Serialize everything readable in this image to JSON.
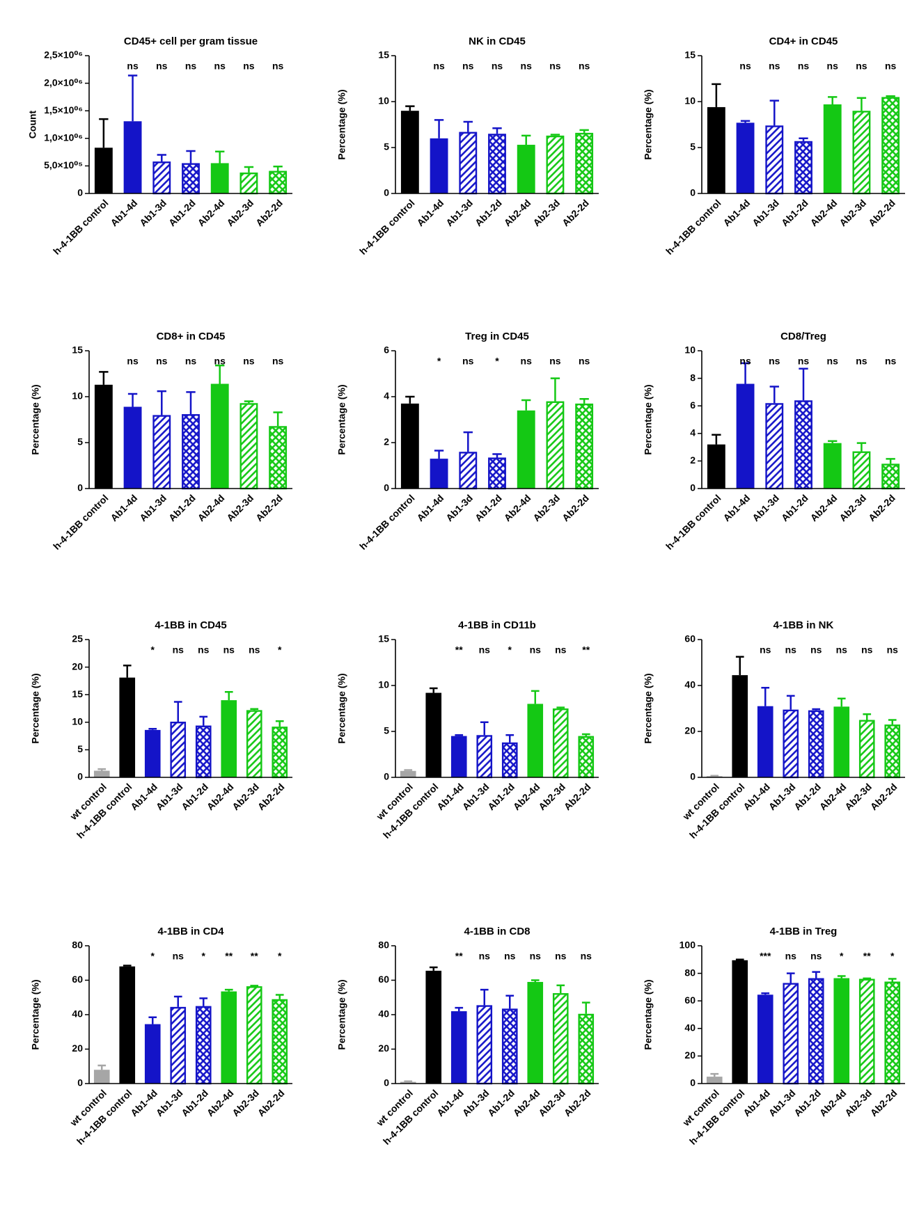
{
  "chart_data": [
    {
      "type": "bar",
      "title": "CD45+ cell per gram tissue",
      "ylabel": "Count",
      "categories": [
        "h-4-1BB control",
        "Ab1-4d",
        "Ab1-3d",
        "Ab1-2d",
        "Ab2-4d",
        "Ab2-3d",
        "Ab2-2d"
      ],
      "values": [
        830000,
        1310000,
        580000,
        550000,
        550000,
        380000,
        410000
      ],
      "errors": [
        520000,
        830000,
        120000,
        220000,
        210000,
        100000,
        80000
      ],
      "annotations": [
        null,
        "ns",
        "ns",
        "ns",
        "ns",
        "ns",
        "ns"
      ],
      "colors": [
        "#000000",
        "#1414c8",
        "#1414c8",
        "#1414c8",
        "#14c814",
        "#14c814",
        "#14c814"
      ],
      "patterns": [
        "solid",
        "solid",
        "diagonal",
        "crosshatch",
        "solid",
        "diagonal",
        "crosshatch"
      ],
      "ylim": [
        0,
        2500000
      ],
      "yticks": [
        0,
        {
          "value": 500000,
          "label": "5,0×10⁰⁵"
        },
        {
          "value": 1000000,
          "label": "1,0×10⁰⁶"
        },
        {
          "value": 1500000,
          "label": "1,5×10⁰⁶"
        },
        {
          "value": 2000000,
          "label": "2,0×10⁰⁶"
        },
        {
          "value": 2500000,
          "label": "2,5×10⁰⁶"
        }
      ]
    },
    {
      "type": "bar",
      "title": "NK in CD45",
      "ylabel": "Percentage (%)",
      "categories": [
        "h-4-1BB control",
        "Ab1-4d",
        "Ab1-3d",
        "Ab1-2d",
        "Ab2-4d",
        "Ab2-3d",
        "Ab2-2d"
      ],
      "values": [
        9.0,
        6.0,
        6.7,
        6.5,
        5.3,
        6.3,
        6.6
      ],
      "errors": [
        0.5,
        2.0,
        1.1,
        0.6,
        1.0,
        0.1,
        0.3
      ],
      "annotations": [
        null,
        "ns",
        "ns",
        "ns",
        "ns",
        "ns",
        "ns"
      ],
      "colors": [
        "#000000",
        "#1414c8",
        "#1414c8",
        "#1414c8",
        "#14c814",
        "#14c814",
        "#14c814"
      ],
      "patterns": [
        "solid",
        "solid",
        "diagonal",
        "crosshatch",
        "solid",
        "diagonal",
        "crosshatch"
      ],
      "ylim": [
        0,
        15
      ],
      "yticks": [
        0,
        5,
        10,
        15
      ]
    },
    {
      "type": "bar",
      "title": "CD4+ in CD45",
      "ylabel": "Percentage (%)",
      "categories": [
        "h-4-1BB control",
        "Ab1-4d",
        "Ab1-3d",
        "Ab1-2d",
        "Ab2-4d",
        "Ab2-3d",
        "Ab2-2d"
      ],
      "values": [
        9.4,
        7.7,
        7.4,
        5.7,
        9.7,
        9.0,
        10.5
      ],
      "errors": [
        2.5,
        0.2,
        2.7,
        0.3,
        0.8,
        1.4,
        0.1
      ],
      "annotations": [
        null,
        "ns",
        "ns",
        "ns",
        "ns",
        "ns",
        "ns"
      ],
      "colors": [
        "#000000",
        "#1414c8",
        "#1414c8",
        "#1414c8",
        "#14c814",
        "#14c814",
        "#14c814"
      ],
      "patterns": [
        "solid",
        "solid",
        "diagonal",
        "crosshatch",
        "solid",
        "diagonal",
        "crosshatch"
      ],
      "ylim": [
        0,
        15
      ],
      "yticks": [
        0,
        5,
        10,
        15
      ]
    },
    {
      "type": "bar",
      "title": "CD8+ in CD45",
      "ylabel": "Percentage (%)",
      "categories": [
        "h-4-1BB control",
        "Ab1-4d",
        "Ab1-3d",
        "Ab1-2d",
        "Ab2-4d",
        "Ab2-3d",
        "Ab2-2d"
      ],
      "values": [
        11.3,
        8.9,
        8.0,
        8.1,
        11.4,
        9.3,
        6.8
      ],
      "errors": [
        1.4,
        1.4,
        2.6,
        2.4,
        2.0,
        0.2,
        1.5
      ],
      "annotations": [
        null,
        "ns",
        "ns",
        "ns",
        "ns",
        "ns",
        "ns"
      ],
      "colors": [
        "#000000",
        "#1414c8",
        "#1414c8",
        "#1414c8",
        "#14c814",
        "#14c814",
        "#14c814"
      ],
      "patterns": [
        "solid",
        "solid",
        "diagonal",
        "crosshatch",
        "solid",
        "diagonal",
        "crosshatch"
      ],
      "ylim": [
        0,
        15
      ],
      "yticks": [
        0,
        5,
        10,
        15
      ]
    },
    {
      "type": "bar",
      "title": "Treg in CD45",
      "ylabel": "Percentage (%)",
      "categories": [
        "h-4-1BB control",
        "Ab1-4d",
        "Ab1-3d",
        "Ab1-2d",
        "Ab2-4d",
        "Ab2-3d",
        "Ab2-2d"
      ],
      "values": [
        3.7,
        1.3,
        1.6,
        1.35,
        3.4,
        3.8,
        3.7
      ],
      "errors": [
        0.3,
        0.35,
        0.85,
        0.15,
        0.45,
        1.0,
        0.2
      ],
      "annotations": [
        null,
        "*",
        "ns",
        "*",
        "ns",
        "ns",
        "ns"
      ],
      "colors": [
        "#000000",
        "#1414c8",
        "#1414c8",
        "#1414c8",
        "#14c814",
        "#14c814",
        "#14c814"
      ],
      "patterns": [
        "solid",
        "solid",
        "diagonal",
        "crosshatch",
        "solid",
        "diagonal",
        "crosshatch"
      ],
      "ylim": [
        0,
        6
      ],
      "yticks": [
        0,
        2,
        4,
        6
      ]
    },
    {
      "type": "bar",
      "title": "CD8/Treg",
      "ylabel": "Percentage (%)",
      "categories": [
        "h-4-1BB control",
        "Ab1-4d",
        "Ab1-3d",
        "Ab1-2d",
        "Ab2-4d",
        "Ab2-3d",
        "Ab2-2d"
      ],
      "values": [
        3.2,
        7.6,
        6.2,
        6.4,
        3.3,
        2.7,
        1.8
      ],
      "errors": [
        0.7,
        1.5,
        1.2,
        2.3,
        0.15,
        0.6,
        0.35
      ],
      "annotations": [
        null,
        "ns",
        "ns",
        "ns",
        "ns",
        "ns",
        "ns"
      ],
      "colors": [
        "#000000",
        "#1414c8",
        "#1414c8",
        "#1414c8",
        "#14c814",
        "#14c814",
        "#14c814"
      ],
      "patterns": [
        "solid",
        "solid",
        "diagonal",
        "crosshatch",
        "solid",
        "diagonal",
        "crosshatch"
      ],
      "ylim": [
        0,
        10
      ],
      "yticks": [
        0,
        2,
        4,
        6,
        8,
        10
      ]
    },
    {
      "type": "bar",
      "title": "4-1BB in CD45",
      "ylabel": "Percentage (%)",
      "categories": [
        "wt control",
        "h-4-1BB control",
        "Ab1-4d",
        "Ab1-3d",
        "Ab1-2d",
        "Ab2-4d",
        "Ab2-3d",
        "Ab2-2d"
      ],
      "values": [
        1.2,
        18.1,
        8.6,
        10.1,
        9.4,
        14.0,
        12.2,
        9.2
      ],
      "errors": [
        0.3,
        2.2,
        0.2,
        3.6,
        1.6,
        1.5,
        0.2,
        1.0
      ],
      "annotations": [
        null,
        null,
        "*",
        "ns",
        "ns",
        "ns",
        "ns",
        "*"
      ],
      "colors": [
        "#a6a6a6",
        "#000000",
        "#1414c8",
        "#1414c8",
        "#1414c8",
        "#14c814",
        "#14c814",
        "#14c814"
      ],
      "patterns": [
        "solid",
        "solid",
        "solid",
        "diagonal",
        "crosshatch",
        "solid",
        "diagonal",
        "crosshatch"
      ],
      "ylim": [
        0,
        25
      ],
      "yticks": [
        0,
        5,
        10,
        15,
        20,
        25
      ]
    },
    {
      "type": "bar",
      "title": "4-1BB in CD11b",
      "ylabel": "Percentage (%)",
      "categories": [
        "wt control",
        "h-4-1BB control",
        "Ab1-4d",
        "Ab1-3d",
        "Ab1-2d",
        "Ab2-4d",
        "Ab2-3d",
        "Ab2-2d"
      ],
      "values": [
        0.7,
        9.2,
        4.5,
        4.6,
        3.8,
        8.0,
        7.5,
        4.5
      ],
      "errors": [
        0.1,
        0.5,
        0.1,
        1.4,
        0.8,
        1.4,
        0.1,
        0.2
      ],
      "annotations": [
        null,
        null,
        "**",
        "ns",
        "*",
        "ns",
        "ns",
        "**"
      ],
      "colors": [
        "#a6a6a6",
        "#000000",
        "#1414c8",
        "#1414c8",
        "#1414c8",
        "#14c814",
        "#14c814",
        "#14c814"
      ],
      "patterns": [
        "solid",
        "solid",
        "solid",
        "diagonal",
        "crosshatch",
        "solid",
        "diagonal",
        "crosshatch"
      ],
      "ylim": [
        0,
        15
      ],
      "yticks": [
        0,
        5,
        10,
        15
      ]
    },
    {
      "type": "bar",
      "title": "4-1BB in NK",
      "ylabel": "Percentage (%)",
      "categories": [
        "wt control",
        "h-4-1BB control",
        "Ab1-4d",
        "Ab1-3d",
        "Ab1-2d",
        "Ab2-4d",
        "Ab2-3d",
        "Ab2-2d"
      ],
      "values": [
        0.5,
        44.5,
        31,
        29.5,
        29.2,
        30.8,
        25,
        23
      ],
      "errors": [
        0.2,
        8,
        8,
        6,
        0.5,
        3.5,
        2.5,
        2
      ],
      "annotations": [
        null,
        null,
        "ns",
        "ns",
        "ns",
        "ns",
        "ns",
        "ns"
      ],
      "colors": [
        "#a6a6a6",
        "#000000",
        "#1414c8",
        "#1414c8",
        "#1414c8",
        "#14c814",
        "#14c814",
        "#14c814"
      ],
      "patterns": [
        "solid",
        "solid",
        "solid",
        "diagonal",
        "crosshatch",
        "solid",
        "diagonal",
        "crosshatch"
      ],
      "ylim": [
        0,
        60
      ],
      "yticks": [
        0,
        20,
        40,
        60
      ]
    },
    {
      "type": "bar",
      "title": "4-1BB in CD4",
      "ylabel": "Percentage (%)",
      "categories": [
        "wt control",
        "h-4-1BB control",
        "Ab1-4d",
        "Ab1-3d",
        "Ab1-2d",
        "Ab2-4d",
        "Ab2-3d",
        "Ab2-2d"
      ],
      "values": [
        8,
        68,
        34.5,
        44.5,
        45,
        53.5,
        56.5,
        49
      ],
      "errors": [
        2.5,
        0.5,
        4,
        6,
        4.5,
        1,
        0.3,
        2.5
      ],
      "annotations": [
        null,
        null,
        "*",
        "ns",
        "*",
        "**",
        "**",
        "*"
      ],
      "colors": [
        "#a6a6a6",
        "#000000",
        "#1414c8",
        "#1414c8",
        "#1414c8",
        "#14c814",
        "#14c814",
        "#14c814"
      ],
      "patterns": [
        "solid",
        "solid",
        "solid",
        "diagonal",
        "crosshatch",
        "solid",
        "diagonal",
        "crosshatch"
      ],
      "ylim": [
        0,
        80
      ],
      "yticks": [
        0,
        20,
        40,
        60,
        80
      ]
    },
    {
      "type": "bar",
      "title": "4-1BB in CD8",
      "ylabel": "Percentage (%)",
      "categories": [
        "wt control",
        "h-4-1BB control",
        "Ab1-4d",
        "Ab1-3d",
        "Ab1-2d",
        "Ab2-4d",
        "Ab2-3d",
        "Ab2-2d"
      ],
      "values": [
        1,
        65.5,
        42,
        45.5,
        43.5,
        59,
        52.5,
        40.5
      ],
      "errors": [
        0.3,
        2,
        2,
        9,
        7.5,
        1,
        4.5,
        6.5
      ],
      "annotations": [
        null,
        null,
        "**",
        "ns",
        "ns",
        "ns",
        "ns",
        "ns"
      ],
      "colors": [
        "#a6a6a6",
        "#000000",
        "#1414c8",
        "#1414c8",
        "#1414c8",
        "#14c814",
        "#14c814",
        "#14c814"
      ],
      "patterns": [
        "solid",
        "solid",
        "solid",
        "diagonal",
        "crosshatch",
        "solid",
        "diagonal",
        "crosshatch"
      ],
      "ylim": [
        0,
        80
      ],
      "yticks": [
        0,
        20,
        40,
        60,
        80
      ]
    },
    {
      "type": "bar",
      "title": "4-1BB in Treg",
      "ylabel": "Percentage (%)",
      "categories": [
        "wt control",
        "h-4-1BB control",
        "Ab1-4d",
        "Ab1-3d",
        "Ab1-2d",
        "Ab2-4d",
        "Ab2-3d",
        "Ab2-2d"
      ],
      "values": [
        5,
        89.5,
        64.5,
        73,
        76.5,
        76.5,
        76,
        74
      ],
      "errors": [
        2,
        0.5,
        1,
        7,
        4.5,
        1.5,
        0.3,
        2
      ],
      "annotations": [
        null,
        null,
        "***",
        "ns",
        "ns",
        "*",
        "**",
        "*"
      ],
      "colors": [
        "#a6a6a6",
        "#000000",
        "#1414c8",
        "#1414c8",
        "#1414c8",
        "#14c814",
        "#14c814",
        "#14c814"
      ],
      "patterns": [
        "solid",
        "solid",
        "solid",
        "diagonal",
        "crosshatch",
        "solid",
        "diagonal",
        "crosshatch"
      ],
      "ylim": [
        0,
        100
      ],
      "yticks": [
        0,
        20,
        40,
        60,
        80,
        100
      ]
    }
  ]
}
